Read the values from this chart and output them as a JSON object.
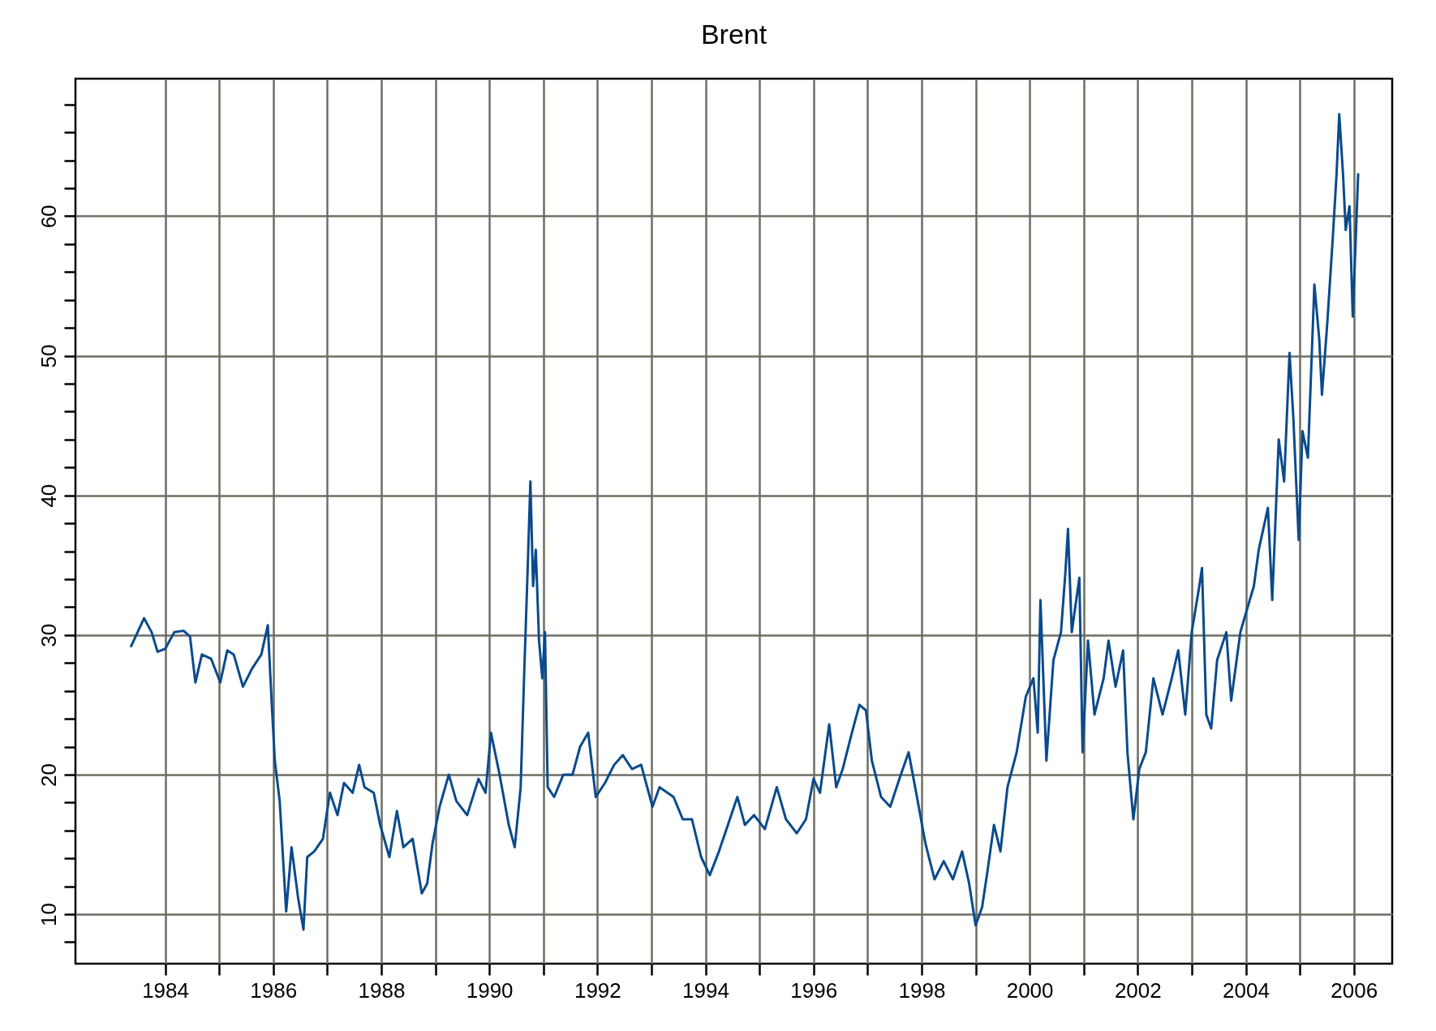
{
  "chart_data": {
    "type": "line",
    "title": "Brent",
    "x": [
      1983.37,
      1983.49,
      1983.61,
      1983.75,
      1983.86,
      1984.0,
      1984.17,
      1984.34,
      1984.46,
      1984.56,
      1984.68,
      1984.85,
      1985.02,
      1985.15,
      1985.27,
      1985.44,
      1985.61,
      1985.78,
      1985.9,
      1985.97,
      1986.03,
      1986.12,
      1986.24,
      1986.34,
      1986.46,
      1986.56,
      1986.63,
      1986.76,
      1986.92,
      1987.05,
      1987.19,
      1987.31,
      1987.47,
      1987.59,
      1987.69,
      1987.86,
      1987.98,
      1988.15,
      1988.29,
      1988.41,
      1988.58,
      1988.75,
      1988.85,
      1988.95,
      1989.08,
      1989.25,
      1989.39,
      1989.59,
      1989.8,
      1989.93,
      1990.03,
      1990.19,
      1990.36,
      1990.47,
      1990.58,
      1990.64,
      1990.71,
      1990.76,
      1990.81,
      1990.86,
      1990.92,
      1990.98,
      1991.03,
      1991.08,
      1991.2,
      1991.37,
      1991.54,
      1991.68,
      1991.83,
      1991.97,
      1992.14,
      1992.31,
      1992.47,
      1992.64,
      1992.81,
      1993.02,
      1993.15,
      1993.41,
      1993.58,
      1993.75,
      1993.92,
      1994.08,
      1994.25,
      1994.39,
      1994.59,
      1994.73,
      1994.9,
      1995.1,
      1995.32,
      1995.49,
      1995.69,
      1995.86,
      1996.0,
      1996.12,
      1996.29,
      1996.42,
      1996.54,
      1996.71,
      1996.85,
      1996.97,
      1997.08,
      1997.25,
      1997.42,
      1997.59,
      1997.76,
      1997.9,
      1998.07,
      1998.24,
      1998.41,
      1998.58,
      1998.75,
      1998.88,
      1999.0,
      1999.12,
      1999.22,
      1999.34,
      1999.46,
      1999.59,
      1999.76,
      1999.93,
      2000.07,
      2000.15,
      2000.2,
      2000.31,
      2000.44,
      2000.58,
      2000.66,
      2000.71,
      2000.78,
      2000.92,
      2000.98,
      2001.08,
      2001.2,
      2001.37,
      2001.46,
      2001.59,
      2001.73,
      2001.81,
      2001.92,
      2002.03,
      2002.15,
      2002.29,
      2002.46,
      2002.63,
      2002.75,
      2002.88,
      2003.0,
      2003.14,
      2003.19,
      2003.27,
      2003.36,
      2003.47,
      2003.64,
      2003.73,
      2003.9,
      2004.02,
      2004.15,
      2004.24,
      2004.41,
      2004.49,
      2004.61,
      2004.71,
      2004.81,
      2004.88,
      2004.98,
      2005.05,
      2005.15,
      2005.27,
      2005.36,
      2005.41,
      2005.51,
      2005.61,
      2005.68,
      2005.73,
      2005.8,
      2005.85,
      2005.92,
      2005.98,
      2006.03,
      2006.08
    ],
    "series": [
      {
        "color": "#0a4a8c",
        "values": [
          29.2,
          30.2,
          31.2,
          30.2,
          28.8,
          29.0,
          30.2,
          30.3,
          29.9,
          26.6,
          28.6,
          28.3,
          26.6,
          28.9,
          28.6,
          26.3,
          27.6,
          28.6,
          30.7,
          25.3,
          21.0,
          18.1,
          10.2,
          14.8,
          11.2,
          8.9,
          14.1,
          14.5,
          15.4,
          18.7,
          17.1,
          19.4,
          18.7,
          20.7,
          19.1,
          18.7,
          16.4,
          14.1,
          17.4,
          14.8,
          15.4,
          11.5,
          12.2,
          15.1,
          17.7,
          20.0,
          18.1,
          17.1,
          19.7,
          18.7,
          23.0,
          20.0,
          16.4,
          14.8,
          19.1,
          26.6,
          34.8,
          41.0,
          33.5,
          36.1,
          29.6,
          26.9,
          30.2,
          19.1,
          18.4,
          20.0,
          20.0,
          22.0,
          23.0,
          18.4,
          19.4,
          20.7,
          21.4,
          20.4,
          20.7,
          17.7,
          19.1,
          18.4,
          16.8,
          16.8,
          14.1,
          12.8,
          14.5,
          16.1,
          18.4,
          16.4,
          17.1,
          16.1,
          19.1,
          16.8,
          15.8,
          16.8,
          19.7,
          18.7,
          23.6,
          19.1,
          20.4,
          23.0,
          25.0,
          24.6,
          21.0,
          18.4,
          17.7,
          19.7,
          21.6,
          18.7,
          15.1,
          12.5,
          13.8,
          12.5,
          14.5,
          12.2,
          9.2,
          10.5,
          13.1,
          16.4,
          14.5,
          19.1,
          21.6,
          25.6,
          26.9,
          23.0,
          32.5,
          21.0,
          28.2,
          30.2,
          34.4,
          37.6,
          30.2,
          34.1,
          21.6,
          29.6,
          24.3,
          26.9,
          29.6,
          26.3,
          28.9,
          21.6,
          16.8,
          20.4,
          21.6,
          26.9,
          24.3,
          26.9,
          28.9,
          24.3,
          30.2,
          33.5,
          34.8,
          24.3,
          23.3,
          28.2,
          30.2,
          25.3,
          30.2,
          31.8,
          33.5,
          36.1,
          39.1,
          32.5,
          44.0,
          41.0,
          50.2,
          45.6,
          36.8,
          44.6,
          42.7,
          55.1,
          51.2,
          47.2,
          52.4,
          58.4,
          63.0,
          67.3,
          63.0,
          59.0,
          60.7,
          52.8,
          57.8,
          63.0
        ]
      }
    ],
    "xlim": [
      1982.34,
      2006.71
    ],
    "xticks": [
      1984,
      {
        "value": 1985,
        "label": null
      },
      1986,
      {
        "value": 1987,
        "label": null
      },
      1988,
      {
        "value": 1989,
        "label": null
      },
      1990,
      {
        "value": 1991,
        "label": null
      },
      1992,
      {
        "value": 1993,
        "label": null
      },
      1994,
      {
        "value": 1995,
        "label": null
      },
      1996,
      {
        "value": 1997,
        "label": null
      },
      1998,
      {
        "value": 1999,
        "label": null
      },
      2000,
      {
        "value": 2001,
        "label": null
      },
      2002,
      {
        "value": 2003,
        "label": null
      },
      2004,
      {
        "value": 2005,
        "label": null
      },
      2006
    ],
    "ylim": [
      6.46,
      69.84
    ],
    "yticks": [
      {
        "value": 8,
        "label": null
      },
      10,
      {
        "value": 12,
        "label": null
      },
      {
        "value": 14,
        "label": null
      },
      {
        "value": 16,
        "label": null
      },
      {
        "value": 18,
        "label": null
      },
      20,
      {
        "value": 22,
        "label": null
      },
      {
        "value": 24,
        "label": null
      },
      {
        "value": 26,
        "label": null
      },
      {
        "value": 28,
        "label": null
      },
      30,
      {
        "value": 32,
        "label": null
      },
      {
        "value": 34,
        "label": null
      },
      {
        "value": 36,
        "label": null
      },
      {
        "value": 38,
        "label": null
      },
      40,
      {
        "value": 42,
        "label": null
      },
      {
        "value": 44,
        "label": null
      },
      {
        "value": 46,
        "label": null
      },
      {
        "value": 48,
        "label": null
      },
      50,
      {
        "value": 52,
        "label": null
      },
      {
        "value": 54,
        "label": null
      },
      {
        "value": 56,
        "label": null
      },
      {
        "value": 58,
        "label": null
      },
      60,
      {
        "value": 62,
        "label": null
      },
      {
        "value": 64,
        "label": null
      },
      {
        "value": 66,
        "label": null
      },
      {
        "value": 68,
        "label": null
      }
    ],
    "grid": true,
    "line_style": "solid"
  }
}
